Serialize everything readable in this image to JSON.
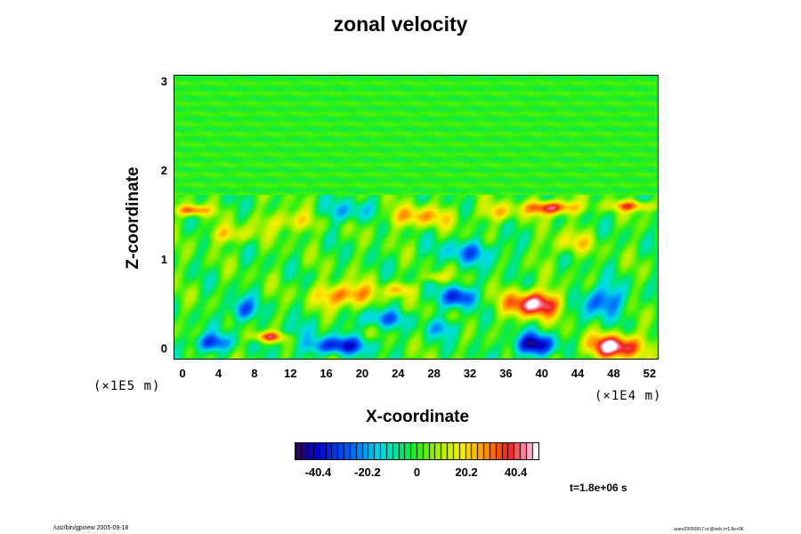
{
  "chart_data": {
    "type": "heatmap",
    "title": "zonal velocity",
    "xlabel": "X-coordinate",
    "ylabel": "Z-coordinate",
    "x_ticks": [
      "0",
      "4",
      "8",
      "12",
      "16",
      "20",
      "24",
      "28",
      "32",
      "36",
      "40",
      "44",
      "48",
      "52"
    ],
    "x_scale_label": "(×1E4 m)",
    "xlim": [
      -1,
      53
    ],
    "y_ticks": [
      "0",
      "1",
      "2",
      "3"
    ],
    "y_scale_label": "(×1E5 m)",
    "ylim": [
      -0.12,
      3.08
    ],
    "colorbar": {
      "ticks": [
        "-40.4",
        "-20.2",
        "0",
        "20.2",
        "40.4"
      ],
      "range": [
        -50,
        50
      ],
      "colormap": "rainbow"
    },
    "time_label": "t=1.8e+06 s",
    "features": [
      {
        "x": 18,
        "z": 0.62,
        "value": 35,
        "rx": 3.2,
        "rz": 0.13
      },
      {
        "x": 39,
        "z": 0.52,
        "value": 48,
        "rx": 3.2,
        "rz": 0.15
      },
      {
        "x": 48,
        "z": 0.04,
        "value": 48,
        "rx": 3.2,
        "rz": 0.14
      },
      {
        "x": 9.5,
        "z": 0.15,
        "value": 38,
        "rx": 1.8,
        "rz": 0.06
      },
      {
        "x": 39,
        "z": 0.06,
        "value": -45,
        "rx": 2.4,
        "rz": 0.12
      },
      {
        "x": 17,
        "z": 0.05,
        "value": -38,
        "rx": 3.5,
        "rz": 0.1
      },
      {
        "x": 3,
        "z": 0.08,
        "value": -32,
        "rx": 2.2,
        "rz": 0.1
      },
      {
        "x": 6.5,
        "z": 0.45,
        "value": -30,
        "rx": 1.5,
        "rz": 0.13
      },
      {
        "x": 22,
        "z": 0.35,
        "value": -22,
        "rx": 3,
        "rz": 0.1
      },
      {
        "x": 30.5,
        "z": 0.6,
        "value": -38,
        "rx": 1.8,
        "rz": 0.12
      },
      {
        "x": 46.5,
        "z": 0.55,
        "value": -32,
        "rx": 2.4,
        "rz": 0.17
      },
      {
        "x": 41,
        "z": 1.6,
        "value": 45,
        "rx": 2.8,
        "rz": 0.08
      },
      {
        "x": 26,
        "z": 1.5,
        "value": 25,
        "rx": 4,
        "rz": 0.12
      },
      {
        "x": 1,
        "z": 1.57,
        "value": 35,
        "rx": 1.8,
        "rz": 0.06
      },
      {
        "x": 12,
        "z": 1.45,
        "value": 22,
        "rx": 3,
        "rz": 0.12
      },
      {
        "x": 50,
        "z": 1.62,
        "value": 30,
        "rx": 2.5,
        "rz": 0.06
      },
      {
        "x": 18,
        "z": 1.55,
        "value": -18,
        "rx": 3.5,
        "rz": 0.12
      },
      {
        "x": 32,
        "z": 1.1,
        "value": -22,
        "rx": 3.5,
        "rz": 0.13
      },
      {
        "x": 5,
        "z": 1.3,
        "value": 20,
        "rx": 2.5,
        "rz": 0.1
      },
      {
        "x": 43,
        "z": 1.2,
        "value": 18,
        "rx": 2.5,
        "rz": 0.12
      },
      {
        "x": 35,
        "z": 1.55,
        "value": 20,
        "rx": 2,
        "rz": 0.1
      },
      {
        "x": 12,
        "z": 0.2,
        "value": -12,
        "rx": 2,
        "rz": 0.1
      },
      {
        "x": 29,
        "z": 0.25,
        "value": -18,
        "rx": 2,
        "rz": 0.1
      },
      {
        "x": 24,
        "z": 0.68,
        "value": 22,
        "rx": 1.5,
        "rz": 0.07
      },
      {
        "x": 28,
        "z": 0.82,
        "value": 20,
        "rx": 1.2,
        "rz": 0.06
      }
    ]
  },
  "footer": {
    "left": "/usr/bin/gpview 2005-09-18",
    "right": "arare20050917.nc@velx,t=1.8e+06"
  }
}
